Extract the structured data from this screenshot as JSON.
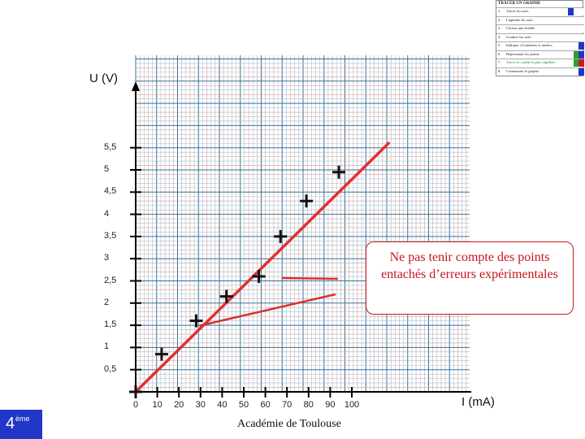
{
  "chart_data": {
    "type": "scatter",
    "xlabel": "I (mA)",
    "ylabel": "U (V)",
    "xlim": [
      0,
      120
    ],
    "ylim": [
      0,
      6
    ],
    "x_ticks": [
      "0",
      "10",
      "20",
      "30",
      "40",
      "50",
      "60",
      "70",
      "80",
      "90",
      "100"
    ],
    "y_ticks": [
      "0,5",
      "1",
      "1,5",
      "2",
      "2,5",
      "3",
      "3,5",
      "4",
      "4,5",
      "5",
      "5,5"
    ],
    "grid": true,
    "series": [
      {
        "points": [
          [
            0,
            0
          ],
          [
            12,
            0.85
          ],
          [
            28,
            1.6
          ],
          [
            42,
            2.15
          ],
          [
            57,
            2.6
          ],
          [
            67,
            3.5
          ],
          [
            79,
            4.3
          ],
          [
            94,
            4.95
          ]
        ]
      }
    ],
    "fit_line": [
      [
        0,
        0
      ],
      [
        117,
        5.6
      ]
    ],
    "annotation": "Ne pas tenir compte des points entachés d’erreurs expérimentales",
    "colors": {
      "marker": "#111111",
      "line": "#e03030",
      "annotation": "#c8141c"
    }
  },
  "footer": "Académie de Toulouse",
  "badge": {
    "number": "4",
    "suffix": "ème"
  },
  "legend": {
    "title": "TRACER UN GRAPHE",
    "items": [
      {
        "num": "1.",
        "text": "Tracer les axes"
      },
      {
        "num": "2.",
        "text": "Légender les axes"
      },
      {
        "num": "3.",
        "text": "Choisir une échelle"
      },
      {
        "num": "4.",
        "text": "Graduer les axes"
      },
      {
        "num": "5.",
        "text": "Indiquer «Grandeurs et unités»"
      },
      {
        "num": "6.",
        "text": "Représenter les points"
      },
      {
        "num": "7.",
        "text": "Tracer la courbe la plus régulière"
      },
      {
        "num": "8.",
        "text": "Commenter le graphe"
      }
    ]
  }
}
